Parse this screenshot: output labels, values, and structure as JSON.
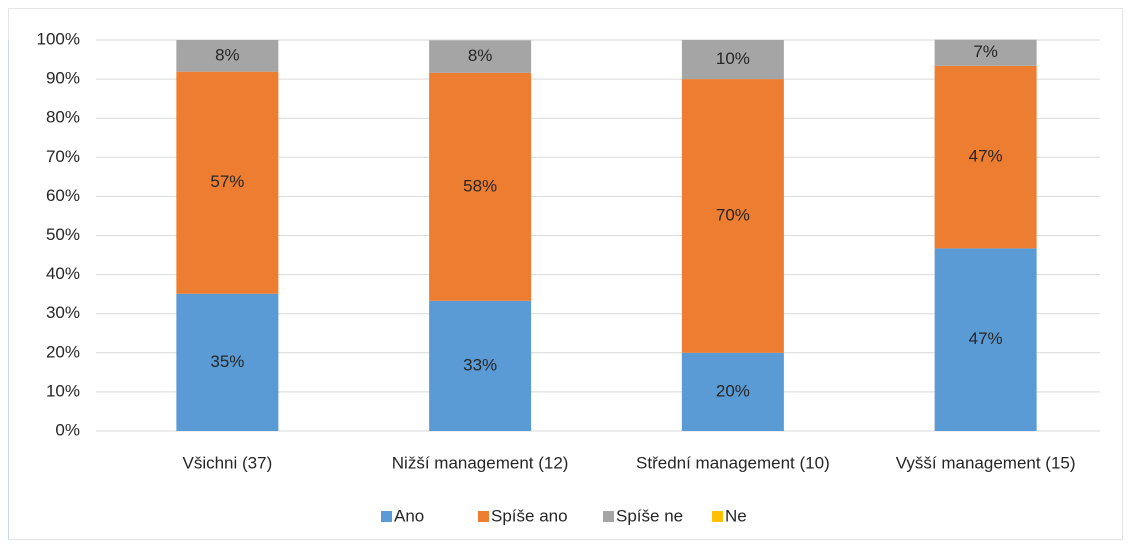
{
  "chart_data": {
    "type": "stacked_bar",
    "categories": [
      "Všichni (37)",
      "Nižší management (12)",
      "Střední management (10)",
      "Vyšší management (15)"
    ],
    "series": [
      {
        "name": "Ano",
        "color": "#5b9bd5",
        "values": [
          35.1,
          33.3,
          20,
          46.7
        ],
        "value_labels": [
          "35%",
          "33%",
          "20%",
          "47%"
        ]
      },
      {
        "name": "Spíše ano",
        "color": "#ed7d31",
        "values": [
          56.8,
          58.3,
          70,
          46.7
        ],
        "value_labels": [
          "57%",
          "58%",
          "70%",
          "47%"
        ]
      },
      {
        "name": "Spíše ne",
        "color": "#a5a5a5",
        "values": [
          8.1,
          8.3,
          10,
          6.7
        ],
        "value_labels": [
          "8%",
          "8%",
          "10%",
          "7%"
        ]
      },
      {
        "name": "Ne",
        "color": "#ffc000",
        "values": [
          0,
          0,
          0,
          0
        ]
      }
    ],
    "ylim": [
      0,
      100
    ],
    "yticks": [
      {
        "value": 0,
        "label": "0%"
      },
      {
        "value": 10,
        "label": "10%"
      },
      {
        "value": 20,
        "label": "20%"
      },
      {
        "value": 30,
        "label": "30%"
      },
      {
        "value": 40,
        "label": "40%"
      },
      {
        "value": 50,
        "label": "50%"
      },
      {
        "value": 60,
        "label": "60%"
      },
      {
        "value": 70,
        "label": "70%"
      },
      {
        "value": 80,
        "label": "80%"
      },
      {
        "value": 90,
        "label": "90%"
      },
      {
        "value": 100,
        "label": "100%"
      }
    ],
    "grid": true,
    "legend": "bottom"
  }
}
